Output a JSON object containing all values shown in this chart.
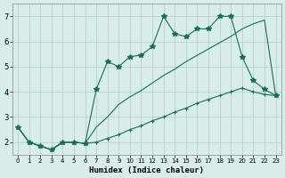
{
  "xlabel": "Humidex (Indice chaleur)",
  "background_color": "#d9ede8",
  "line_color": "#1a6b5a",
  "xlim": [
    -0.5,
    23.5
  ],
  "ylim": [
    1.5,
    7.5
  ],
  "yticks": [
    2,
    3,
    4,
    5,
    6,
    7
  ],
  "xticks": [
    0,
    1,
    2,
    3,
    4,
    5,
    6,
    7,
    8,
    9,
    10,
    11,
    12,
    13,
    14,
    15,
    16,
    17,
    18,
    19,
    20,
    21,
    22,
    23
  ],
  "line1_x": [
    0,
    1,
    2,
    3,
    4,
    5,
    6,
    7,
    8,
    9,
    10,
    11,
    12,
    13,
    14,
    15,
    16,
    17,
    18,
    19,
    20,
    21,
    22,
    23
  ],
  "line1_y": [
    2.6,
    2.0,
    1.85,
    1.7,
    2.0,
    2.0,
    1.95,
    2.0,
    2.15,
    2.3,
    2.5,
    2.65,
    2.85,
    3.0,
    3.2,
    3.35,
    3.55,
    3.7,
    3.85,
    4.0,
    4.15,
    4.0,
    3.9,
    3.85
  ],
  "line2_x": [
    0,
    1,
    2,
    3,
    4,
    5,
    6,
    7,
    8,
    9,
    10,
    11,
    12,
    13,
    14,
    15,
    16,
    17,
    18,
    19,
    20,
    21,
    22,
    23
  ],
  "line2_y": [
    2.6,
    2.0,
    1.85,
    1.7,
    2.0,
    2.0,
    1.95,
    4.1,
    5.2,
    5.0,
    5.4,
    5.45,
    5.8,
    7.0,
    6.3,
    6.2,
    6.5,
    6.5,
    7.0,
    7.0,
    5.4,
    4.45,
    4.1,
    3.85
  ],
  "line3_x": [
    0,
    1,
    2,
    3,
    4,
    5,
    6,
    7,
    8,
    9,
    10,
    11,
    12,
    13,
    14,
    15,
    16,
    17,
    18,
    19,
    20,
    21,
    22,
    23
  ],
  "line3_y": [
    2.6,
    2.0,
    1.85,
    1.7,
    2.0,
    2.0,
    1.95,
    2.6,
    3.0,
    3.5,
    3.8,
    4.05,
    4.35,
    4.65,
    4.9,
    5.2,
    5.45,
    5.7,
    5.95,
    6.2,
    6.5,
    6.7,
    6.85,
    3.85
  ],
  "grid_color": "#b0ccbf"
}
